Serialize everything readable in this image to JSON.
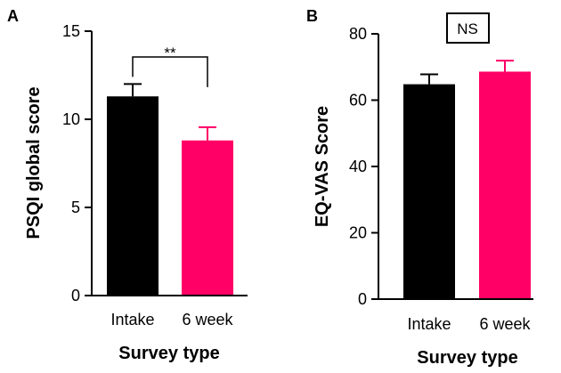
{
  "chart_data": [
    {
      "type": "bar",
      "panel_label": "A",
      "categories": [
        "Intake",
        "6 week"
      ],
      "values": [
        11.3,
        8.8
      ],
      "errors": [
        0.7,
        0.75
      ],
      "colors": [
        "#000000",
        "#ff0066"
      ],
      "ylim": [
        0,
        15
      ],
      "yticks": [
        0,
        5,
        10,
        15
      ],
      "ylabel": "PSQI global score",
      "xlabel": "Survey type",
      "annotation": "**"
    },
    {
      "type": "bar",
      "panel_label": "B",
      "categories": [
        "Intake",
        "6 week"
      ],
      "values": [
        64.8,
        68.6
      ],
      "errors": [
        3.0,
        3.3
      ],
      "colors": [
        "#000000",
        "#ff0066"
      ],
      "ylim": [
        0,
        80
      ],
      "yticks": [
        0,
        20,
        40,
        60,
        80
      ],
      "ylabel": "EQ-VAS Score",
      "xlabel": "Survey type",
      "annotation": "NS"
    }
  ]
}
